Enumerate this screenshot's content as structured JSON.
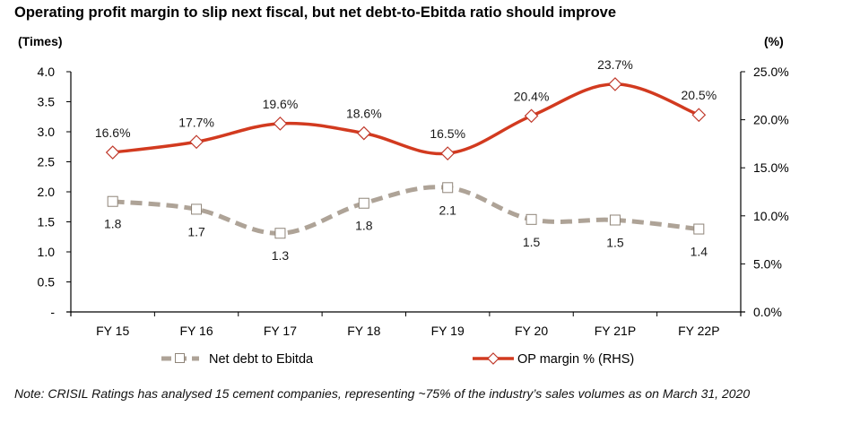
{
  "title": "Operating profit margin to slip next fiscal, but net debt-to-Ebitda ratio should improve",
  "left_unit": "(Times)",
  "right_unit": "(%)",
  "note": "Note: CRISIL Ratings has analysed 15 cement companies, representing ~75% of the industry’s sales volumes as on March 31, 2020",
  "chart_data": {
    "type": "line",
    "title": "Operating profit margin to slip next fiscal, but net debt-to-Ebitda ratio should improve",
    "xlabel": "",
    "ylabel": "(Times)",
    "y2label": "(%)",
    "categories": [
      "FY 15",
      "FY 16",
      "FY 17",
      "FY 18",
      "FY 19",
      "FY 20",
      "FY 21P",
      "FY 22P"
    ],
    "ylim": [
      0,
      4.0
    ],
    "y2lim": [
      0,
      25.0
    ],
    "y_ticks": [
      "-",
      "0.5",
      "1.0",
      "1.5",
      "2.0",
      "2.5",
      "3.0",
      "3.5",
      "4.0"
    ],
    "y_tick_values": [
      0,
      0.5,
      1.0,
      1.5,
      2.0,
      2.5,
      3.0,
      3.5,
      4.0
    ],
    "y2_ticks": [
      "0.0%",
      "5.0%",
      "10.0%",
      "15.0%",
      "20.0%",
      "25.0%"
    ],
    "y2_tick_values": [
      0,
      5,
      10,
      15,
      20,
      25
    ],
    "grid": false,
    "legend_position": "bottom",
    "series": [
      {
        "name": "Net debt to Ebitda",
        "axis": "left",
        "color": "#aea397",
        "style": "dashed",
        "marker": "square",
        "values": [
          1.84,
          1.71,
          1.31,
          1.81,
          2.07,
          1.54,
          1.53,
          1.38
        ],
        "labels": [
          "1.8",
          "1.7",
          "1.3",
          "1.8",
          "2.1",
          "1.5",
          "1.5",
          "1.4"
        ]
      },
      {
        "name": "OP margin % (RHS)",
        "axis": "right",
        "color": "#d23a1f",
        "style": "solid",
        "marker": "diamond",
        "values": [
          16.6,
          17.7,
          19.6,
          18.6,
          16.5,
          20.4,
          23.7,
          20.5
        ],
        "labels": [
          "16.6%",
          "17.7%",
          "19.6%",
          "18.6%",
          "16.5%",
          "20.4%",
          "23.7%",
          "20.5%"
        ]
      }
    ]
  }
}
